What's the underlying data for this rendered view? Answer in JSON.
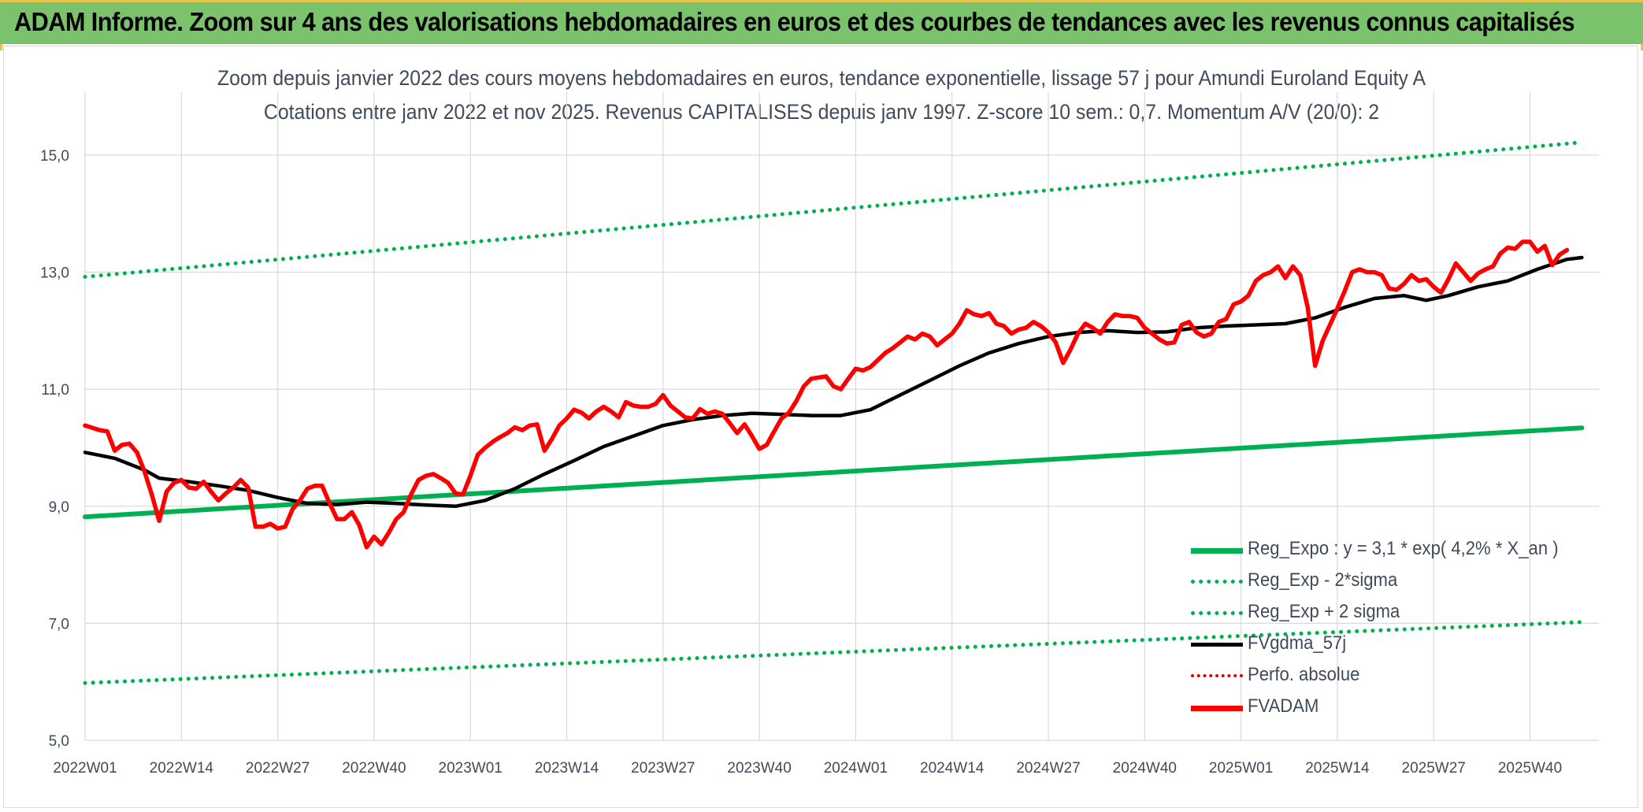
{
  "header": {
    "title": "ADAM Informe. Zoom sur 4 ans des valorisations hebdomadaires en euros et des courbes de tendances avec les revenus connus capitalisés"
  },
  "chart_data": {
    "type": "line",
    "title": "Zoom depuis janvier 2022 des cours moyens hebdomadaires en euros, tendance exponentielle, lissage 57 j pour Amundi Euroland Equity A",
    "subtitle": "Cotations entre janv 2022 et nov 2025. Revenus CAPITALISES depuis janv 1997. Z-score 10 sem.: 0,7. Momentum A/V (20/0): 2",
    "ylim": [
      5.0,
      15.0
    ],
    "yticks": [
      "5,0",
      "7,0",
      "9,0",
      "11,0",
      "13,0",
      "15,0"
    ],
    "x_start": "2022W01",
    "x_end": "2025W46",
    "n_weeks": 203,
    "x_ticks": [
      "2022W01",
      "2022W14",
      "2022W27",
      "2022W40",
      "2023W01",
      "2023W14",
      "2023W27",
      "2023W40",
      "2024W01",
      "2024W14",
      "2024W27",
      "2024W40",
      "2025W01",
      "2025W14",
      "2025W27",
      "2025W40"
    ],
    "grid": true,
    "legend_position": "lower-right",
    "series": [
      {
        "name": "Reg_Expo : y = 3,1 * exp( 4,2% *  X_an )",
        "style": "solid",
        "color": "#00b050",
        "points": [
          [
            0,
            8.82
          ],
          [
            202,
            10.34
          ]
        ]
      },
      {
        "name": "Reg_Exp - 2*sigma",
        "style": "dotted",
        "color": "#00b050",
        "points": [
          [
            0,
            5.98
          ],
          [
            202,
            7.02
          ]
        ]
      },
      {
        "name": "Reg_Exp + 2 sigma",
        "style": "dotted",
        "color": "#00b050",
        "points": [
          [
            0,
            12.92
          ],
          [
            202,
            15.22
          ]
        ]
      },
      {
        "name": "FVgdma_57j",
        "style": "solid",
        "color": "#000000",
        "points": [
          [
            0,
            9.92
          ],
          [
            4,
            9.82
          ],
          [
            8,
            9.62
          ],
          [
            10,
            9.48
          ],
          [
            14,
            9.42
          ],
          [
            18,
            9.35
          ],
          [
            22,
            9.27
          ],
          [
            26,
            9.15
          ],
          [
            30,
            9.05
          ],
          [
            34,
            9.03
          ],
          [
            38,
            9.07
          ],
          [
            42,
            9.05
          ],
          [
            46,
            9.02
          ],
          [
            50,
            9.0
          ],
          [
            54,
            9.1
          ],
          [
            58,
            9.3
          ],
          [
            62,
            9.55
          ],
          [
            66,
            9.78
          ],
          [
            70,
            10.02
          ],
          [
            74,
            10.2
          ],
          [
            78,
            10.38
          ],
          [
            82,
            10.48
          ],
          [
            86,
            10.55
          ],
          [
            90,
            10.59
          ],
          [
            94,
            10.57
          ],
          [
            98,
            10.55
          ],
          [
            102,
            10.55
          ],
          [
            106,
            10.65
          ],
          [
            110,
            10.9
          ],
          [
            114,
            11.15
          ],
          [
            118,
            11.4
          ],
          [
            122,
            11.62
          ],
          [
            126,
            11.78
          ],
          [
            130,
            11.9
          ],
          [
            134,
            11.97
          ],
          [
            138,
            12.0
          ],
          [
            142,
            11.97
          ],
          [
            146,
            11.98
          ],
          [
            150,
            12.05
          ],
          [
            154,
            12.08
          ],
          [
            158,
            12.1
          ],
          [
            162,
            12.12
          ],
          [
            166,
            12.22
          ],
          [
            170,
            12.4
          ],
          [
            174,
            12.55
          ],
          [
            178,
            12.6
          ],
          [
            181,
            12.52
          ],
          [
            184,
            12.6
          ],
          [
            188,
            12.75
          ],
          [
            192,
            12.85
          ],
          [
            196,
            13.05
          ],
          [
            200,
            13.22
          ],
          [
            202,
            13.25
          ]
        ]
      },
      {
        "name": "Perfo. absolue",
        "style": "dotted",
        "color": "#e00000",
        "points": []
      },
      {
        "name": "FVADAM",
        "style": "solid",
        "color": "#ff0000",
        "points": [
          [
            0,
            10.38
          ],
          [
            2,
            10.3
          ],
          [
            3,
            10.28
          ],
          [
            4,
            9.95
          ],
          [
            5,
            10.05
          ],
          [
            6,
            10.07
          ],
          [
            7,
            9.92
          ],
          [
            8,
            9.6
          ],
          [
            9,
            9.2
          ],
          [
            10,
            8.75
          ],
          [
            11,
            9.25
          ],
          [
            12,
            9.4
          ],
          [
            13,
            9.45
          ],
          [
            14,
            9.32
          ],
          [
            15,
            9.3
          ],
          [
            16,
            9.42
          ],
          [
            17,
            9.25
          ],
          [
            18,
            9.1
          ],
          [
            19,
            9.22
          ],
          [
            20,
            9.32
          ],
          [
            21,
            9.45
          ],
          [
            22,
            9.32
          ],
          [
            23,
            8.65
          ],
          [
            24,
            8.65
          ],
          [
            25,
            8.7
          ],
          [
            26,
            8.62
          ],
          [
            27,
            8.65
          ],
          [
            28,
            8.95
          ],
          [
            29,
            9.1
          ],
          [
            30,
            9.3
          ],
          [
            31,
            9.35
          ],
          [
            32,
            9.35
          ],
          [
            33,
            9.05
          ],
          [
            34,
            8.78
          ],
          [
            35,
            8.78
          ],
          [
            36,
            8.9
          ],
          [
            37,
            8.68
          ],
          [
            38,
            8.3
          ],
          [
            39,
            8.48
          ],
          [
            40,
            8.35
          ],
          [
            41,
            8.55
          ],
          [
            42,
            8.78
          ],
          [
            43,
            8.9
          ],
          [
            44,
            9.2
          ],
          [
            45,
            9.45
          ],
          [
            46,
            9.52
          ],
          [
            47,
            9.55
          ],
          [
            48,
            9.48
          ],
          [
            49,
            9.4
          ],
          [
            50,
            9.22
          ],
          [
            51,
            9.2
          ],
          [
            52,
            9.52
          ],
          [
            53,
            9.88
          ],
          [
            54,
            10.0
          ],
          [
            55,
            10.1
          ],
          [
            56,
            10.18
          ],
          [
            57,
            10.25
          ],
          [
            58,
            10.35
          ],
          [
            59,
            10.3
          ],
          [
            60,
            10.38
          ],
          [
            61,
            10.4
          ],
          [
            62,
            9.95
          ],
          [
            63,
            10.15
          ],
          [
            64,
            10.38
          ],
          [
            65,
            10.5
          ],
          [
            66,
            10.65
          ],
          [
            67,
            10.6
          ],
          [
            68,
            10.5
          ],
          [
            69,
            10.62
          ],
          [
            70,
            10.7
          ],
          [
            71,
            10.62
          ],
          [
            72,
            10.52
          ],
          [
            73,
            10.78
          ],
          [
            74,
            10.72
          ],
          [
            75,
            10.7
          ],
          [
            76,
            10.7
          ],
          [
            77,
            10.75
          ],
          [
            78,
            10.9
          ],
          [
            79,
            10.72
          ],
          [
            80,
            10.62
          ],
          [
            81,
            10.52
          ],
          [
            82,
            10.5
          ],
          [
            83,
            10.66
          ],
          [
            84,
            10.58
          ],
          [
            85,
            10.62
          ],
          [
            86,
            10.58
          ],
          [
            87,
            10.42
          ],
          [
            88,
            10.25
          ],
          [
            89,
            10.4
          ],
          [
            90,
            10.2
          ],
          [
            91,
            9.98
          ],
          [
            92,
            10.05
          ],
          [
            93,
            10.28
          ],
          [
            94,
            10.5
          ],
          [
            95,
            10.6
          ],
          [
            96,
            10.8
          ],
          [
            97,
            11.05
          ],
          [
            98,
            11.18
          ],
          [
            99,
            11.2
          ],
          [
            100,
            11.22
          ],
          [
            101,
            11.05
          ],
          [
            102,
            11.0
          ],
          [
            103,
            11.18
          ],
          [
            104,
            11.35
          ],
          [
            105,
            11.32
          ],
          [
            106,
            11.38
          ],
          [
            107,
            11.5
          ],
          [
            108,
            11.62
          ],
          [
            109,
            11.7
          ],
          [
            110,
            11.8
          ],
          [
            111,
            11.9
          ],
          [
            112,
            11.85
          ],
          [
            113,
            11.95
          ],
          [
            114,
            11.9
          ],
          [
            115,
            11.75
          ],
          [
            116,
            11.85
          ],
          [
            117,
            11.95
          ],
          [
            118,
            12.12
          ],
          [
            119,
            12.35
          ],
          [
            120,
            12.28
          ],
          [
            121,
            12.25
          ],
          [
            122,
            12.3
          ],
          [
            123,
            12.12
          ],
          [
            124,
            12.08
          ],
          [
            125,
            11.95
          ],
          [
            126,
            12.02
          ],
          [
            127,
            12.05
          ],
          [
            128,
            12.15
          ],
          [
            129,
            12.08
          ],
          [
            130,
            11.97
          ],
          [
            131,
            11.8
          ],
          [
            132,
            11.45
          ],
          [
            133,
            11.68
          ],
          [
            134,
            11.95
          ],
          [
            135,
            12.12
          ],
          [
            136,
            12.05
          ],
          [
            137,
            11.95
          ],
          [
            138,
            12.15
          ],
          [
            139,
            12.28
          ],
          [
            140,
            12.25
          ],
          [
            141,
            12.25
          ],
          [
            142,
            12.22
          ],
          [
            143,
            12.05
          ],
          [
            144,
            11.95
          ],
          [
            145,
            11.85
          ],
          [
            146,
            11.78
          ],
          [
            147,
            11.8
          ],
          [
            148,
            12.1
          ],
          [
            149,
            12.15
          ],
          [
            150,
            11.97
          ],
          [
            151,
            11.9
          ],
          [
            152,
            11.95
          ],
          [
            153,
            12.15
          ],
          [
            154,
            12.2
          ],
          [
            155,
            12.45
          ],
          [
            156,
            12.5
          ],
          [
            157,
            12.6
          ],
          [
            158,
            12.85
          ],
          [
            159,
            12.95
          ],
          [
            160,
            13.0
          ],
          [
            161,
            13.1
          ],
          [
            162,
            12.9
          ],
          [
            163,
            13.1
          ],
          [
            164,
            12.95
          ],
          [
            165,
            12.4
          ],
          [
            166,
            11.4
          ],
          [
            167,
            11.82
          ],
          [
            168,
            12.1
          ],
          [
            169,
            12.38
          ],
          [
            170,
            12.68
          ],
          [
            171,
            13.0
          ],
          [
            172,
            13.05
          ],
          [
            173,
            13.0
          ],
          [
            174,
            13.0
          ],
          [
            175,
            12.95
          ],
          [
            176,
            12.72
          ],
          [
            177,
            12.7
          ],
          [
            178,
            12.8
          ],
          [
            179,
            12.95
          ],
          [
            180,
            12.85
          ],
          [
            181,
            12.88
          ],
          [
            182,
            12.75
          ],
          [
            183,
            12.65
          ],
          [
            184,
            12.88
          ],
          [
            185,
            13.15
          ],
          [
            186,
            13.0
          ],
          [
            187,
            12.85
          ],
          [
            188,
            12.98
          ],
          [
            189,
            13.05
          ],
          [
            190,
            13.1
          ],
          [
            191,
            13.32
          ],
          [
            192,
            13.42
          ],
          [
            193,
            13.4
          ],
          [
            194,
            13.52
          ],
          [
            195,
            13.52
          ],
          [
            196,
            13.35
          ],
          [
            197,
            13.45
          ],
          [
            198,
            13.12
          ],
          [
            199,
            13.3
          ],
          [
            200,
            13.38
          ]
        ]
      }
    ]
  }
}
